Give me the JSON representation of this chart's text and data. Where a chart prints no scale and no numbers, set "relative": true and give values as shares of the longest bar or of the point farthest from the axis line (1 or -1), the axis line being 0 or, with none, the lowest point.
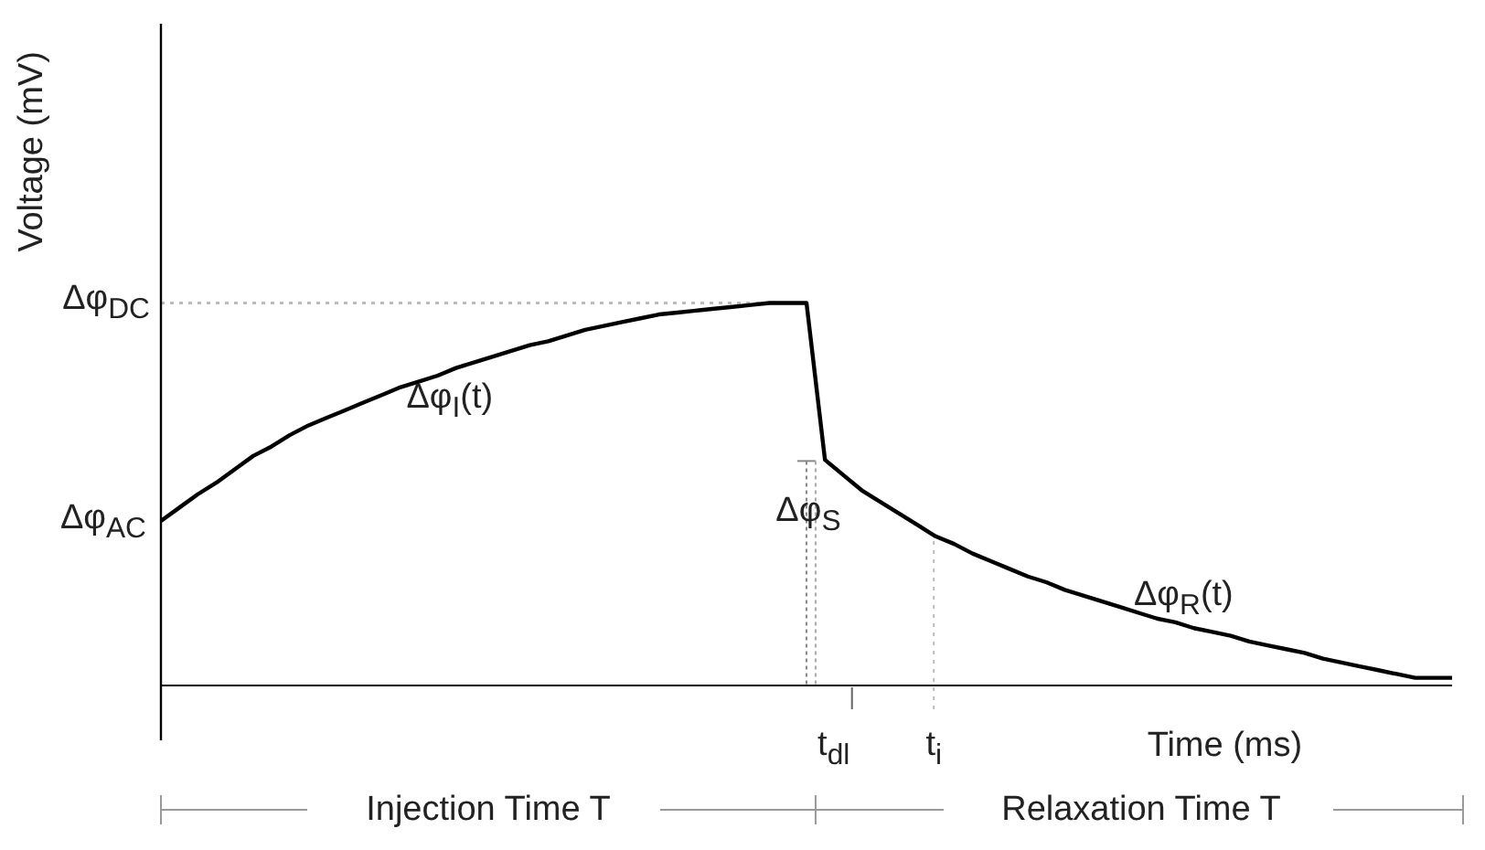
{
  "chart_data": {
    "type": "line",
    "relative": true,
    "xlabel": "Time (ms)",
    "ylabel": "Voltage (mV)",
    "categories": [
      null,
      null,
      null,
      null,
      null,
      null,
      null,
      null,
      null,
      null,
      null,
      null,
      null,
      null,
      null,
      null,
      null,
      null,
      null,
      null,
      null,
      null,
      null,
      null,
      null,
      null,
      null,
      null,
      null,
      null,
      null,
      null,
      null,
      null,
      null,
      null,
      null,
      null,
      null,
      null,
      null,
      null,
      null,
      null,
      null,
      null,
      null,
      null,
      null,
      null,
      null,
      null,
      null,
      null,
      null,
      null,
      null,
      null,
      null,
      null,
      null,
      null,
      null,
      null,
      null,
      null,
      null,
      null,
      null,
      null,
      null
    ],
    "series": [
      {
        "color": "#000000",
        "values": [
          0.43,
          0.465,
          0.5,
          0.53,
          0.565,
          0.6,
          0.625,
          0.655,
          0.68,
          0.7,
          0.72,
          0.74,
          0.76,
          0.78,
          0.795,
          0.81,
          0.83,
          0.845,
          0.86,
          0.875,
          0.89,
          0.9,
          0.915,
          0.93,
          0.94,
          0.95,
          0.96,
          0.97,
          0.975,
          0.98,
          0.985,
          0.99,
          0.995,
          1,
          1,
          1,
          0.59,
          0.55,
          0.51,
          0.48,
          0.45,
          0.42,
          0.39,
          0.37,
          0.345,
          0.325,
          0.305,
          0.285,
          0.27,
          0.25,
          0.235,
          0.22,
          0.205,
          0.19,
          0.175,
          0.165,
          0.15,
          0.14,
          0.13,
          0.115,
          0.105,
          0.095,
          0.085,
          0.07,
          0.06,
          0.05,
          0.04,
          0.03,
          0.02,
          0.02,
          0.02
        ]
      }
    ],
    "ref_lines": [
      {
        "axis": "y",
        "value": 1,
        "label": "Δφ$_{DC}$",
        "color": "#bbbbbb",
        "line_style": "dotted"
      }
    ],
    "annotations": [
      "Δφ$_{AC}$",
      "Δφ$_{S}$",
      "Δφ$_{I}$(t)",
      "Δφ$_{R}$(t)",
      "t$_{dl}$",
      "t$_{i}$",
      "Injection Time T",
      "Relaxation Time T"
    ]
  }
}
